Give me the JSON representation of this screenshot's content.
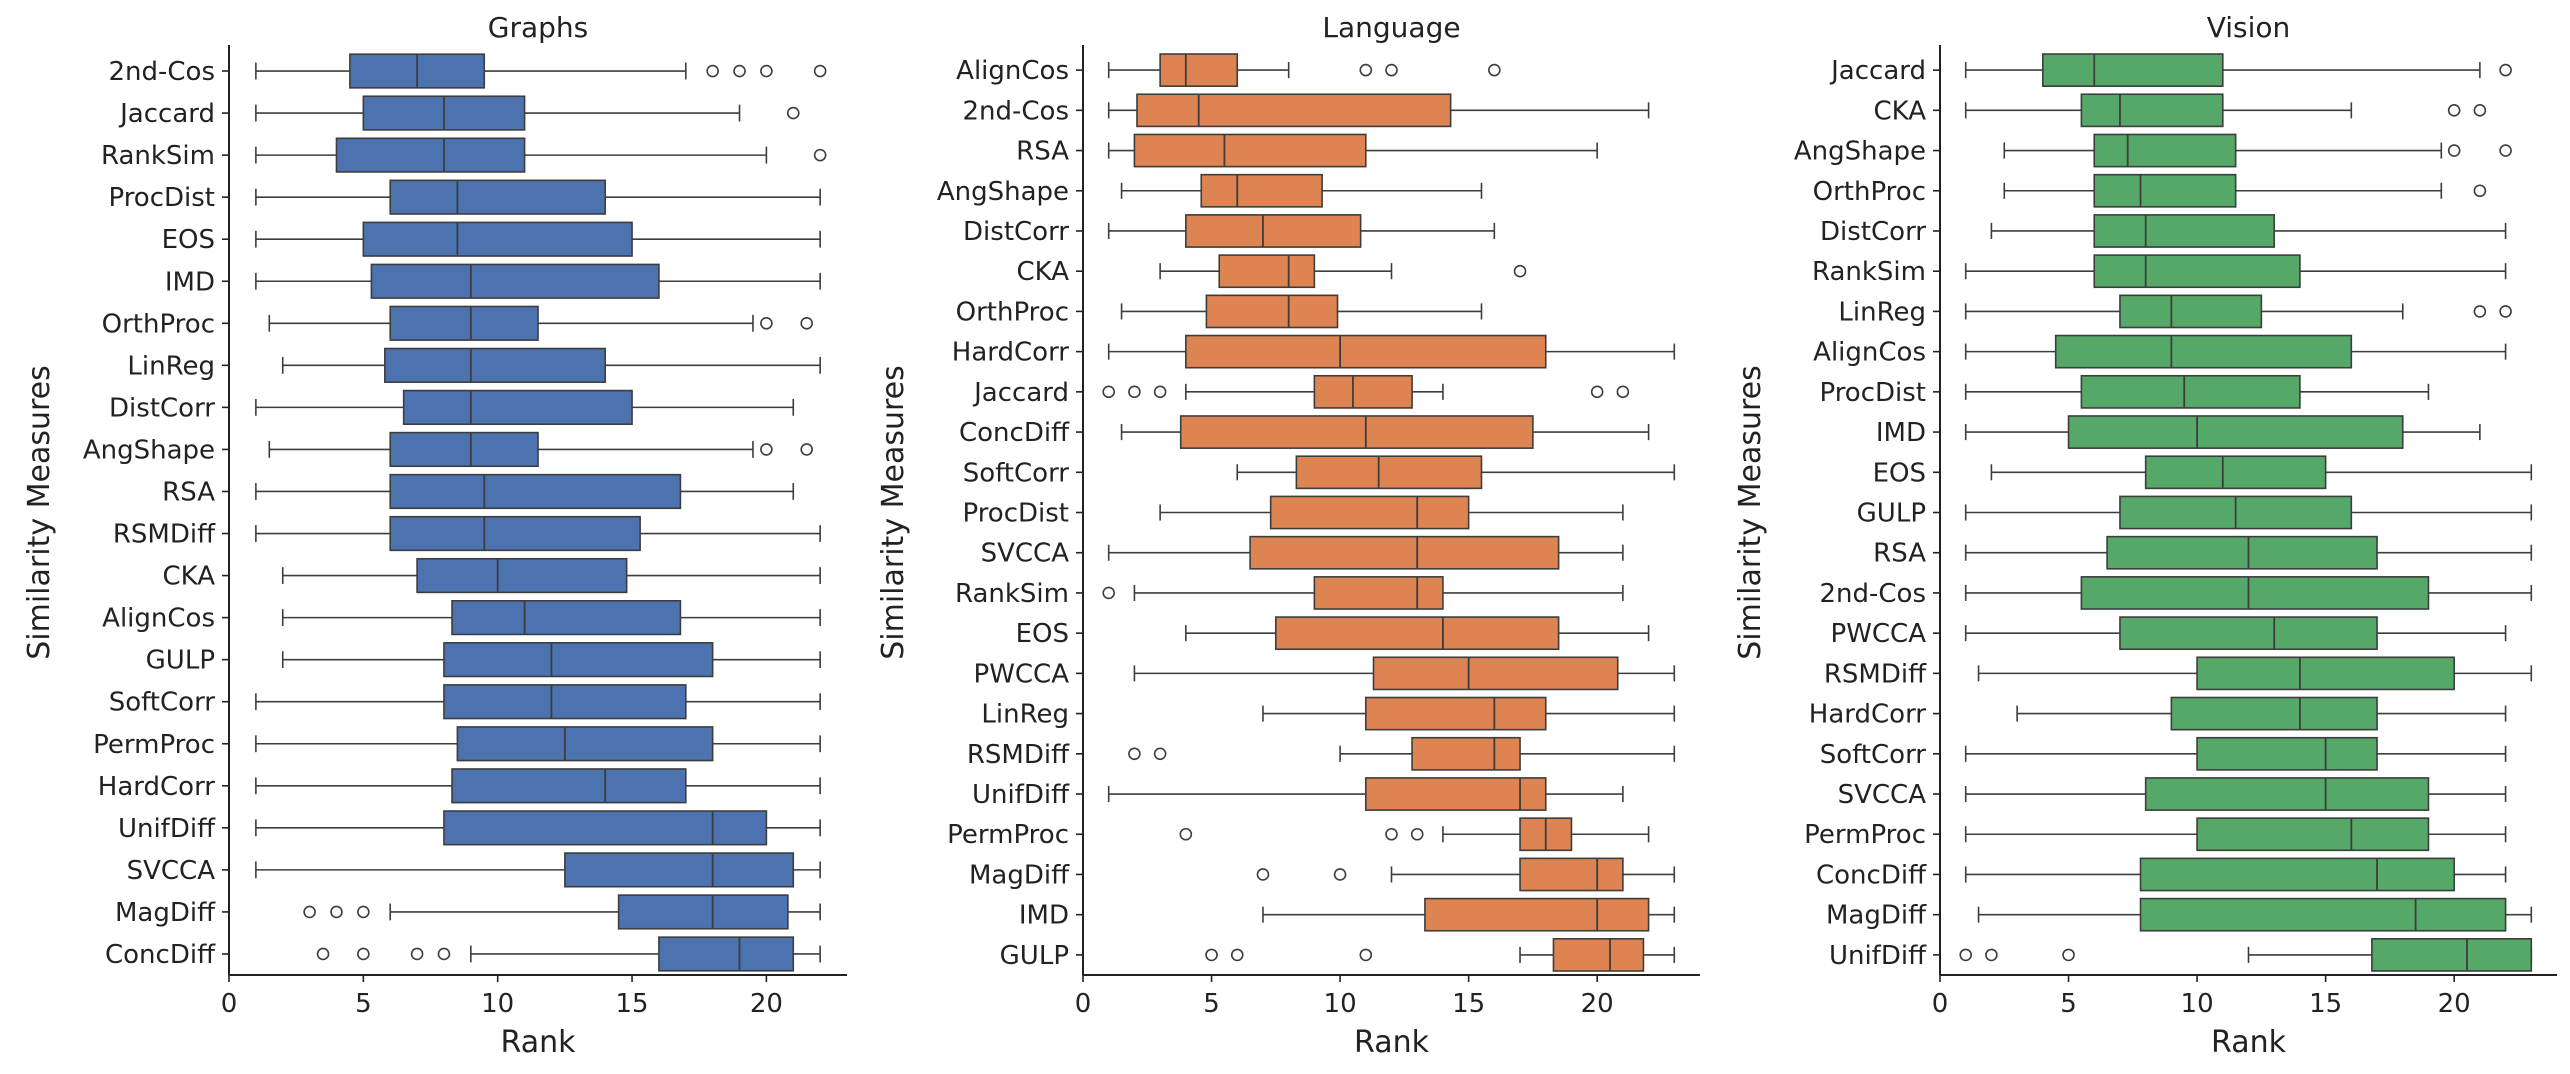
{
  "chart_data": [
    {
      "type": "box",
      "title": "Graphs",
      "xlabel": "Rank",
      "ylabel": "Similarity Measures",
      "xlim": [
        0,
        23
      ],
      "xticks": [
        0,
        5,
        10,
        15,
        20
      ],
      "color": "#4c72b0",
      "categories": [
        "2nd-Cos",
        "Jaccard",
        "RankSim",
        "ProcDist",
        "EOS",
        "IMD",
        "OrthProc",
        "LinReg",
        "DistCorr",
        "AngShape",
        "RSA",
        "RSMDiff",
        "CKA",
        "AlignCos",
        "GULP",
        "SoftCorr",
        "PermProc",
        "HardCorr",
        "UnifDiff",
        "SVCCA",
        "MagDiff",
        "ConcDiff"
      ],
      "boxes": [
        {
          "whislo": 1,
          "q1": 4.5,
          "med": 7,
          "q3": 9.5,
          "whishi": 17,
          "fliers": [
            18,
            19,
            20,
            22
          ]
        },
        {
          "whislo": 1,
          "q1": 5,
          "med": 8,
          "q3": 11,
          "whishi": 19,
          "fliers": [
            21
          ]
        },
        {
          "whislo": 1,
          "q1": 4,
          "med": 8,
          "q3": 11,
          "whishi": 20,
          "fliers": [
            22
          ]
        },
        {
          "whislo": 1,
          "q1": 6,
          "med": 8.5,
          "q3": 14,
          "whishi": 22,
          "fliers": []
        },
        {
          "whislo": 1,
          "q1": 5,
          "med": 8.5,
          "q3": 15,
          "whishi": 22,
          "fliers": []
        },
        {
          "whislo": 1,
          "q1": 5.3,
          "med": 9,
          "q3": 16,
          "whishi": 22,
          "fliers": []
        },
        {
          "whislo": 1.5,
          "q1": 6,
          "med": 9,
          "q3": 11.5,
          "whishi": 19.5,
          "fliers": [
            20,
            21.5
          ]
        },
        {
          "whislo": 2,
          "q1": 5.8,
          "med": 9,
          "q3": 14,
          "whishi": 22,
          "fliers": []
        },
        {
          "whislo": 1,
          "q1": 6.5,
          "med": 9,
          "q3": 15,
          "whishi": 21,
          "fliers": []
        },
        {
          "whislo": 1.5,
          "q1": 6,
          "med": 9,
          "q3": 11.5,
          "whishi": 19.5,
          "fliers": [
            20,
            21.5
          ]
        },
        {
          "whislo": 1,
          "q1": 6,
          "med": 9.5,
          "q3": 16.8,
          "whishi": 21,
          "fliers": []
        },
        {
          "whislo": 1,
          "q1": 6,
          "med": 9.5,
          "q3": 15.3,
          "whishi": 22,
          "fliers": []
        },
        {
          "whislo": 2,
          "q1": 7,
          "med": 10,
          "q3": 14.8,
          "whishi": 22,
          "fliers": []
        },
        {
          "whislo": 2,
          "q1": 8.3,
          "med": 11,
          "q3": 16.8,
          "whishi": 22,
          "fliers": []
        },
        {
          "whislo": 2,
          "q1": 8,
          "med": 12,
          "q3": 18,
          "whishi": 22,
          "fliers": []
        },
        {
          "whislo": 1,
          "q1": 8,
          "med": 12,
          "q3": 17,
          "whishi": 22,
          "fliers": []
        },
        {
          "whislo": 1,
          "q1": 8.5,
          "med": 12.5,
          "q3": 18,
          "whishi": 22,
          "fliers": []
        },
        {
          "whislo": 1,
          "q1": 8.3,
          "med": 14,
          "q3": 17,
          "whishi": 22,
          "fliers": []
        },
        {
          "whislo": 1,
          "q1": 8,
          "med": 18,
          "q3": 20,
          "whishi": 22,
          "fliers": []
        },
        {
          "whislo": 1,
          "q1": 12.5,
          "med": 18,
          "q3": 21,
          "whishi": 22,
          "fliers": []
        },
        {
          "whislo": 6,
          "q1": 14.5,
          "med": 18,
          "q3": 20.8,
          "whishi": 22,
          "fliers": [
            3,
            4,
            5
          ]
        },
        {
          "whislo": 9,
          "q1": 16,
          "med": 19,
          "q3": 21,
          "whishi": 22,
          "fliers": [
            3.5,
            5,
            7,
            8
          ]
        }
      ]
    },
    {
      "type": "box",
      "title": "Language",
      "xlabel": "Rank",
      "ylabel": "Similarity Measures",
      "xlim": [
        0,
        24
      ],
      "xticks": [
        0,
        5,
        10,
        15,
        20
      ],
      "color": "#dd8452",
      "categories": [
        "AlignCos",
        "2nd-Cos",
        "RSA",
        "AngShape",
        "DistCorr",
        "CKA",
        "OrthProc",
        "HardCorr",
        "Jaccard",
        "ConcDiff",
        "SoftCorr",
        "ProcDist",
        "SVCCA",
        "RankSim",
        "EOS",
        "PWCCA",
        "LinReg",
        "RSMDiff",
        "UnifDiff",
        "PermProc",
        "MagDiff",
        "IMD",
        "GULP"
      ],
      "boxes": [
        {
          "whislo": 1,
          "q1": 3,
          "med": 4,
          "q3": 6,
          "whishi": 8,
          "fliers": [
            11,
            12,
            16
          ]
        },
        {
          "whislo": 1,
          "q1": 2.1,
          "med": 4.5,
          "q3": 14.3,
          "whishi": 22,
          "fliers": []
        },
        {
          "whislo": 1,
          "q1": 2,
          "med": 5.5,
          "q3": 11,
          "whishi": 20,
          "fliers": []
        },
        {
          "whislo": 1.5,
          "q1": 4.6,
          "med": 6,
          "q3": 9.3,
          "whishi": 15.5,
          "fliers": []
        },
        {
          "whislo": 1,
          "q1": 4,
          "med": 7,
          "q3": 10.8,
          "whishi": 16,
          "fliers": []
        },
        {
          "whislo": 3,
          "q1": 5.3,
          "med": 8,
          "q3": 9,
          "whishi": 12,
          "fliers": [
            17
          ]
        },
        {
          "whislo": 1.5,
          "q1": 4.8,
          "med": 8,
          "q3": 9.9,
          "whishi": 15.5,
          "fliers": []
        },
        {
          "whislo": 1,
          "q1": 4,
          "med": 10,
          "q3": 18,
          "whishi": 23,
          "fliers": []
        },
        {
          "whislo": 4,
          "q1": 9,
          "med": 10.5,
          "q3": 12.8,
          "whishi": 14,
          "fliers": [
            1,
            2,
            3,
            20,
            21
          ]
        },
        {
          "whislo": 1.5,
          "q1": 3.8,
          "med": 11,
          "q3": 17.5,
          "whishi": 22,
          "fliers": []
        },
        {
          "whislo": 6,
          "q1": 8.3,
          "med": 11.5,
          "q3": 15.5,
          "whishi": 23,
          "fliers": []
        },
        {
          "whislo": 3,
          "q1": 7.3,
          "med": 13,
          "q3": 15,
          "whishi": 21,
          "fliers": []
        },
        {
          "whislo": 1,
          "q1": 6.5,
          "med": 13,
          "q3": 18.5,
          "whishi": 21,
          "fliers": []
        },
        {
          "whislo": 2,
          "q1": 9,
          "med": 13,
          "q3": 14,
          "whishi": 21,
          "fliers": [
            1
          ]
        },
        {
          "whislo": 4,
          "q1": 7.5,
          "med": 14,
          "q3": 18.5,
          "whishi": 22,
          "fliers": []
        },
        {
          "whislo": 2,
          "q1": 11.3,
          "med": 15,
          "q3": 20.8,
          "whishi": 23,
          "fliers": []
        },
        {
          "whislo": 7,
          "q1": 11,
          "med": 16,
          "q3": 18,
          "whishi": 23,
          "fliers": []
        },
        {
          "whislo": 10,
          "q1": 12.8,
          "med": 16,
          "q3": 17,
          "whishi": 23,
          "fliers": [
            2,
            3
          ]
        },
        {
          "whislo": 1,
          "q1": 11,
          "med": 17,
          "q3": 18,
          "whishi": 21,
          "fliers": []
        },
        {
          "whislo": 14,
          "q1": 17,
          "med": 18,
          "q3": 19,
          "whishi": 22,
          "fliers": [
            4,
            12,
            13
          ]
        },
        {
          "whislo": 12,
          "q1": 17,
          "med": 20,
          "q3": 21,
          "whishi": 23,
          "fliers": [
            7,
            10
          ]
        },
        {
          "whislo": 7,
          "q1": 13.3,
          "med": 20,
          "q3": 22,
          "whishi": 23,
          "fliers": []
        },
        {
          "whislo": 17,
          "q1": 18.3,
          "med": 20.5,
          "q3": 21.8,
          "whishi": 23,
          "fliers": [
            5,
            6,
            11
          ]
        }
      ]
    },
    {
      "type": "box",
      "title": "Vision",
      "xlabel": "Rank",
      "ylabel": "Similarity Measures",
      "xlim": [
        0,
        24
      ],
      "xticks": [
        0,
        5,
        10,
        15,
        20
      ],
      "color": "#55a868",
      "categories": [
        "Jaccard",
        "CKA",
        "AngShape",
        "OrthProc",
        "DistCorr",
        "RankSim",
        "LinReg",
        "AlignCos",
        "ProcDist",
        "IMD",
        "EOS",
        "GULP",
        "RSA",
        "2nd-Cos",
        "PWCCA",
        "RSMDiff",
        "HardCorr",
        "SoftCorr",
        "SVCCA",
        "PermProc",
        "ConcDiff",
        "MagDiff",
        "UnifDiff"
      ],
      "boxes": [
        {
          "whislo": 1,
          "q1": 4,
          "med": 6,
          "q3": 11,
          "whishi": 21,
          "fliers": [
            22
          ]
        },
        {
          "whislo": 1,
          "q1": 5.5,
          "med": 7,
          "q3": 11,
          "whishi": 16,
          "fliers": [
            20,
            21
          ]
        },
        {
          "whislo": 2.5,
          "q1": 6,
          "med": 7.3,
          "q3": 11.5,
          "whishi": 19.5,
          "fliers": [
            20,
            22
          ]
        },
        {
          "whislo": 2.5,
          "q1": 6,
          "med": 7.8,
          "q3": 11.5,
          "whishi": 19.5,
          "fliers": [
            21
          ]
        },
        {
          "whislo": 2,
          "q1": 6,
          "med": 8,
          "q3": 13,
          "whishi": 22,
          "fliers": []
        },
        {
          "whislo": 1,
          "q1": 6,
          "med": 8,
          "q3": 14,
          "whishi": 22,
          "fliers": []
        },
        {
          "whislo": 1,
          "q1": 7,
          "med": 9,
          "q3": 12.5,
          "whishi": 18,
          "fliers": [
            21,
            22
          ]
        },
        {
          "whislo": 1,
          "q1": 4.5,
          "med": 9,
          "q3": 16,
          "whishi": 22,
          "fliers": []
        },
        {
          "whislo": 1,
          "q1": 5.5,
          "med": 9.5,
          "q3": 14,
          "whishi": 19,
          "fliers": []
        },
        {
          "whislo": 1,
          "q1": 5,
          "med": 10,
          "q3": 18,
          "whishi": 21,
          "fliers": []
        },
        {
          "whislo": 2,
          "q1": 8,
          "med": 11,
          "q3": 15,
          "whishi": 23,
          "fliers": []
        },
        {
          "whislo": 1,
          "q1": 7,
          "med": 11.5,
          "q3": 16,
          "whishi": 23,
          "fliers": []
        },
        {
          "whislo": 1,
          "q1": 6.5,
          "med": 12,
          "q3": 17,
          "whishi": 23,
          "fliers": []
        },
        {
          "whislo": 1,
          "q1": 5.5,
          "med": 12,
          "q3": 19,
          "whishi": 23,
          "fliers": []
        },
        {
          "whislo": 1,
          "q1": 7,
          "med": 13,
          "q3": 17,
          "whishi": 22,
          "fliers": []
        },
        {
          "whislo": 1.5,
          "q1": 10,
          "med": 14,
          "q3": 20,
          "whishi": 23,
          "fliers": []
        },
        {
          "whislo": 3,
          "q1": 9,
          "med": 14,
          "q3": 17,
          "whishi": 22,
          "fliers": []
        },
        {
          "whislo": 1,
          "q1": 10,
          "med": 15,
          "q3": 17,
          "whishi": 22,
          "fliers": []
        },
        {
          "whislo": 1,
          "q1": 8,
          "med": 15,
          "q3": 19,
          "whishi": 22,
          "fliers": []
        },
        {
          "whislo": 1,
          "q1": 10,
          "med": 16,
          "q3": 19,
          "whishi": 22,
          "fliers": []
        },
        {
          "whislo": 1,
          "q1": 7.8,
          "med": 17,
          "q3": 20,
          "whishi": 22,
          "fliers": []
        },
        {
          "whislo": 1.5,
          "q1": 7.8,
          "med": 18.5,
          "q3": 22,
          "whishi": 23,
          "fliers": []
        },
        {
          "whislo": 12,
          "q1": 16.8,
          "med": 20.5,
          "q3": 23,
          "whishi": 23,
          "fliers": [
            1,
            2,
            5
          ]
        }
      ]
    }
  ]
}
